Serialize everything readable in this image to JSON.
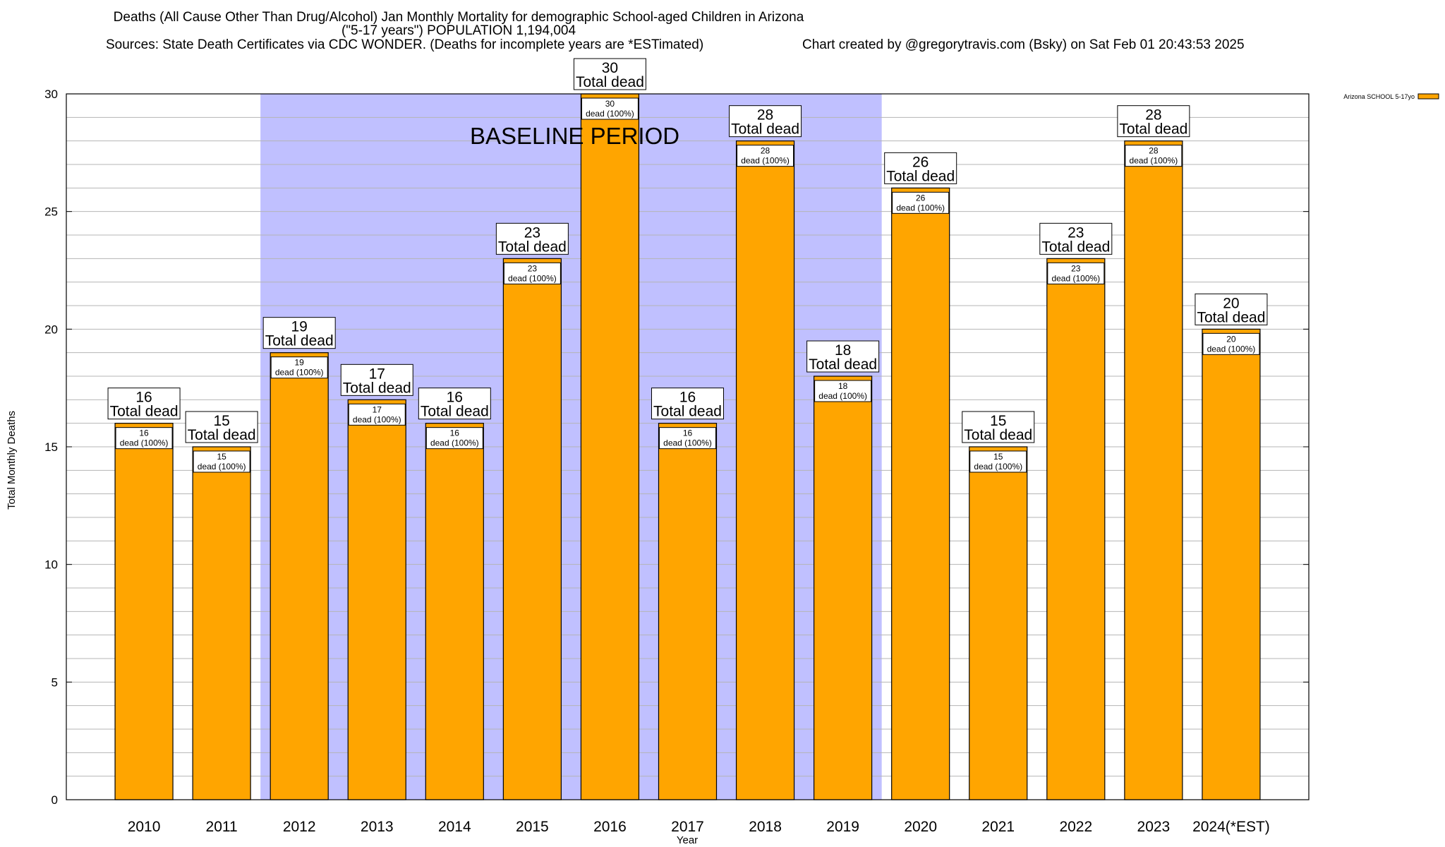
{
  "chart_data": {
    "type": "bar",
    "title_line1": "Deaths (All Cause Other Than Drug/Alcohol) Jan Monthly Mortality for demographic School-aged Children in Arizona",
    "title_line2": "(\"5-17 years\") POPULATION 1,194,004",
    "sources": "Sources: State Death Certificates via CDC WONDER. (Deaths for incomplete years are *ESTimated)",
    "credit": "Chart created by @gregorytravis.com (Bsky) on Sat Feb 01 20:43:53 2025",
    "xlabel": "Year",
    "ylabel": "Total Monthly Deaths",
    "ylim": [
      0,
      30
    ],
    "yticks": [
      0,
      5,
      10,
      15,
      20,
      25,
      30
    ],
    "categories": [
      "2010",
      "2011",
      "2012",
      "2013",
      "2014",
      "2015",
      "2016",
      "2017",
      "2018",
      "2019",
      "2020",
      "2021",
      "2022",
      "2023",
      "2024(*EST)"
    ],
    "series": [
      {
        "name": "Arizona SCHOOL 5-17yo",
        "values": [
          16,
          15,
          19,
          17,
          16,
          23,
          30,
          16,
          28,
          18,
          26,
          15,
          23,
          28,
          20
        ]
      }
    ],
    "baseline": {
      "label": "BASELINE PERIOD",
      "from": "2012",
      "to": "2019"
    },
    "total_label": "Total dead",
    "inner_label_suffix": "dead (100%)",
    "legend_position": "top-right",
    "colors": {
      "bar": "#ffa500",
      "baseline": "#c0c0ff",
      "grid": "#b4b4b4"
    }
  }
}
